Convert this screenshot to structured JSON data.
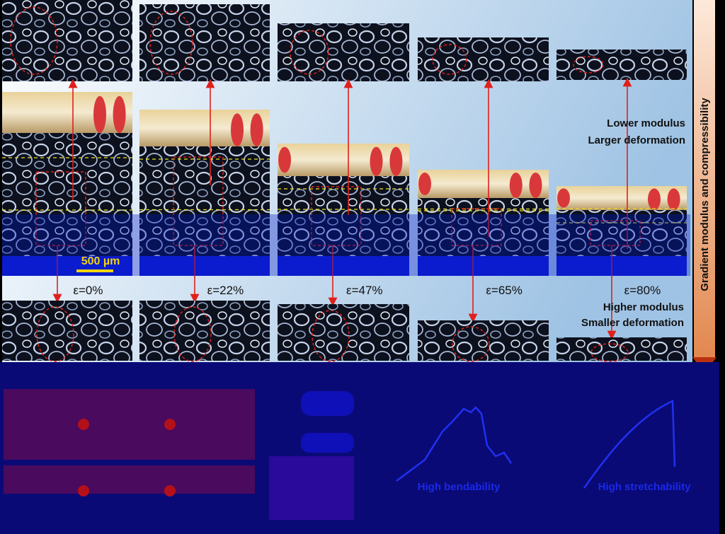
{
  "annotations": {
    "lower_modulus": "Lower modulus",
    "larger_deformation": "Larger deformation",
    "higher_modulus": "Higher modulus",
    "smaller_deformation": "Smaller deformation",
    "scale_bar": "500 µm",
    "side_label": "Gradient modulus and compressibility"
  },
  "panels": [
    {
      "strain": "ε=0%"
    },
    {
      "strain": "ε=22%"
    },
    {
      "strain": "ε=47%"
    },
    {
      "strain": "ε=65%"
    },
    {
      "strain": "ε=80%"
    }
  ],
  "bottom": {
    "left_curve": "High bendability",
    "right_curve": "High stretchability"
  }
}
